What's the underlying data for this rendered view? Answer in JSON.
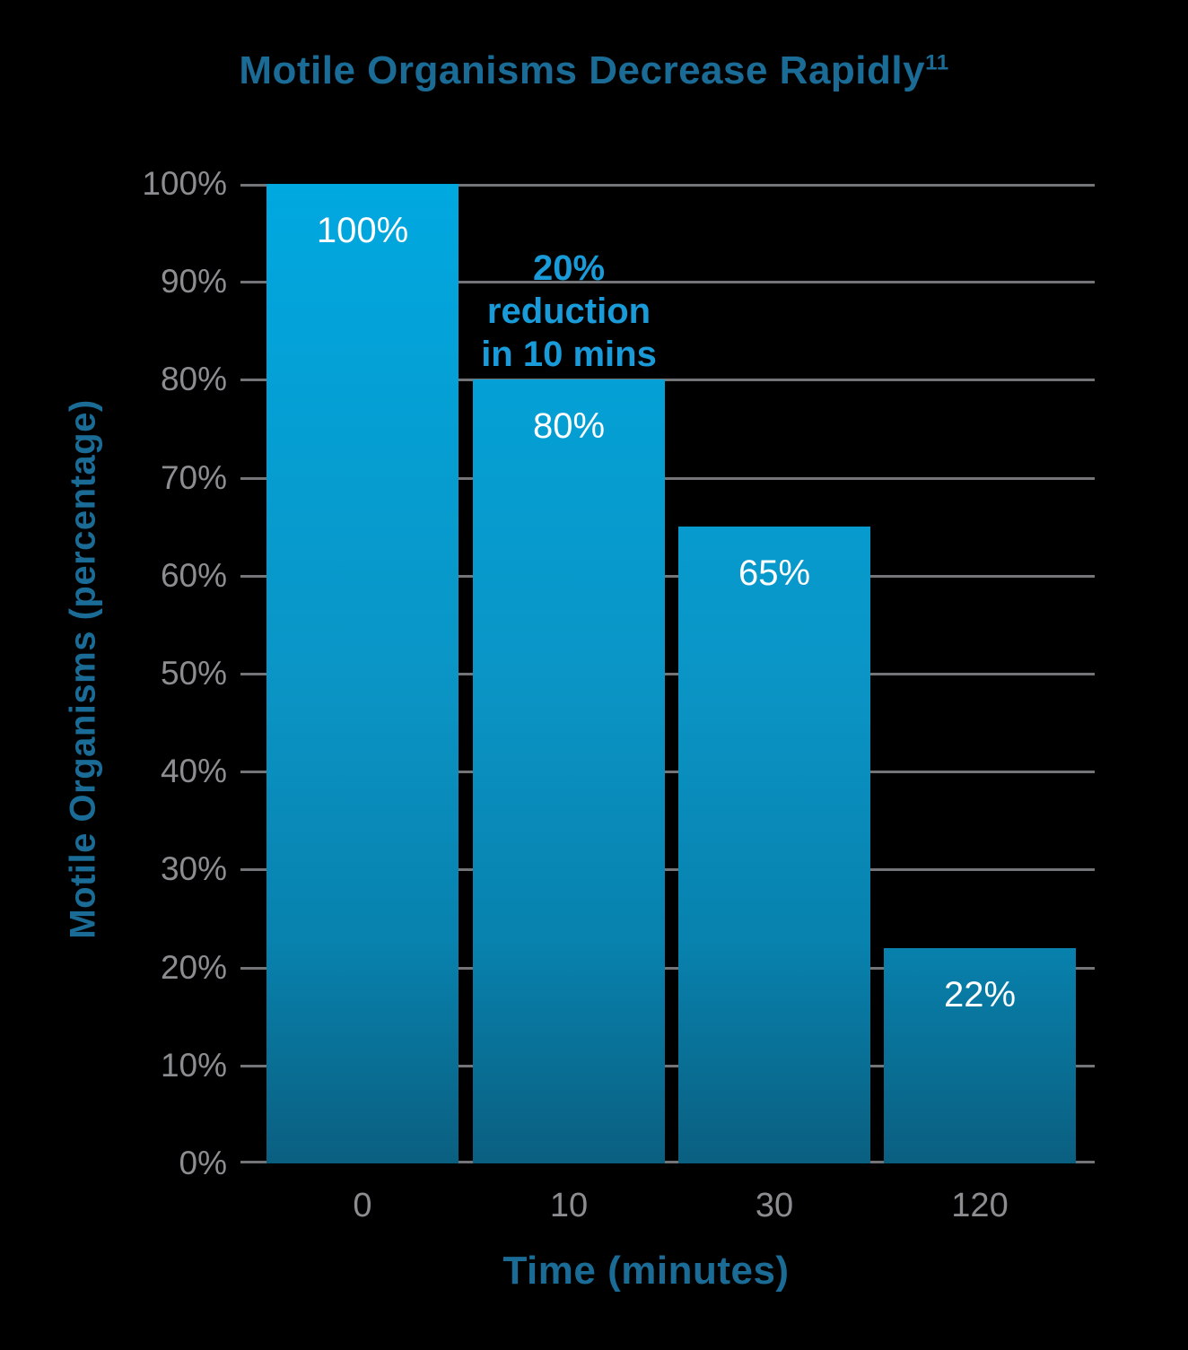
{
  "chart_data": {
    "type": "bar",
    "title": "Motile Organisms Decrease Rapidly",
    "title_superscript": "11",
    "xlabel": "Time (minutes)",
    "ylabel": "Motile Organisms (percentage)",
    "categories": [
      "0",
      "10",
      "30",
      "120"
    ],
    "values": [
      100,
      80,
      65,
      22
    ],
    "bar_labels": [
      "100%",
      "80%",
      "65%",
      "22%"
    ],
    "ylim": [
      0,
      100
    ],
    "ytick_step": 10,
    "ytick_labels": [
      "0%",
      "10%",
      "20%",
      "30%",
      "40%",
      "50%",
      "60%",
      "70%",
      "80%",
      "90%",
      "100%"
    ],
    "grid": true,
    "legend": false,
    "annotation": {
      "lines": [
        "20%",
        "reduction",
        "in 10 mins"
      ],
      "bar_index": 1
    },
    "colors": {
      "background": "#000000",
      "heading": "#1A6C96",
      "annotation": "#189BD8",
      "grid": "#747578",
      "tick": "#8B8D90",
      "bar_label": "#FFFFFF",
      "bar_top": "#00A8E0",
      "bar_mid": "#0A95C6",
      "bar_low": "#0881AD",
      "bar_bottom": "#0A5F80"
    }
  }
}
